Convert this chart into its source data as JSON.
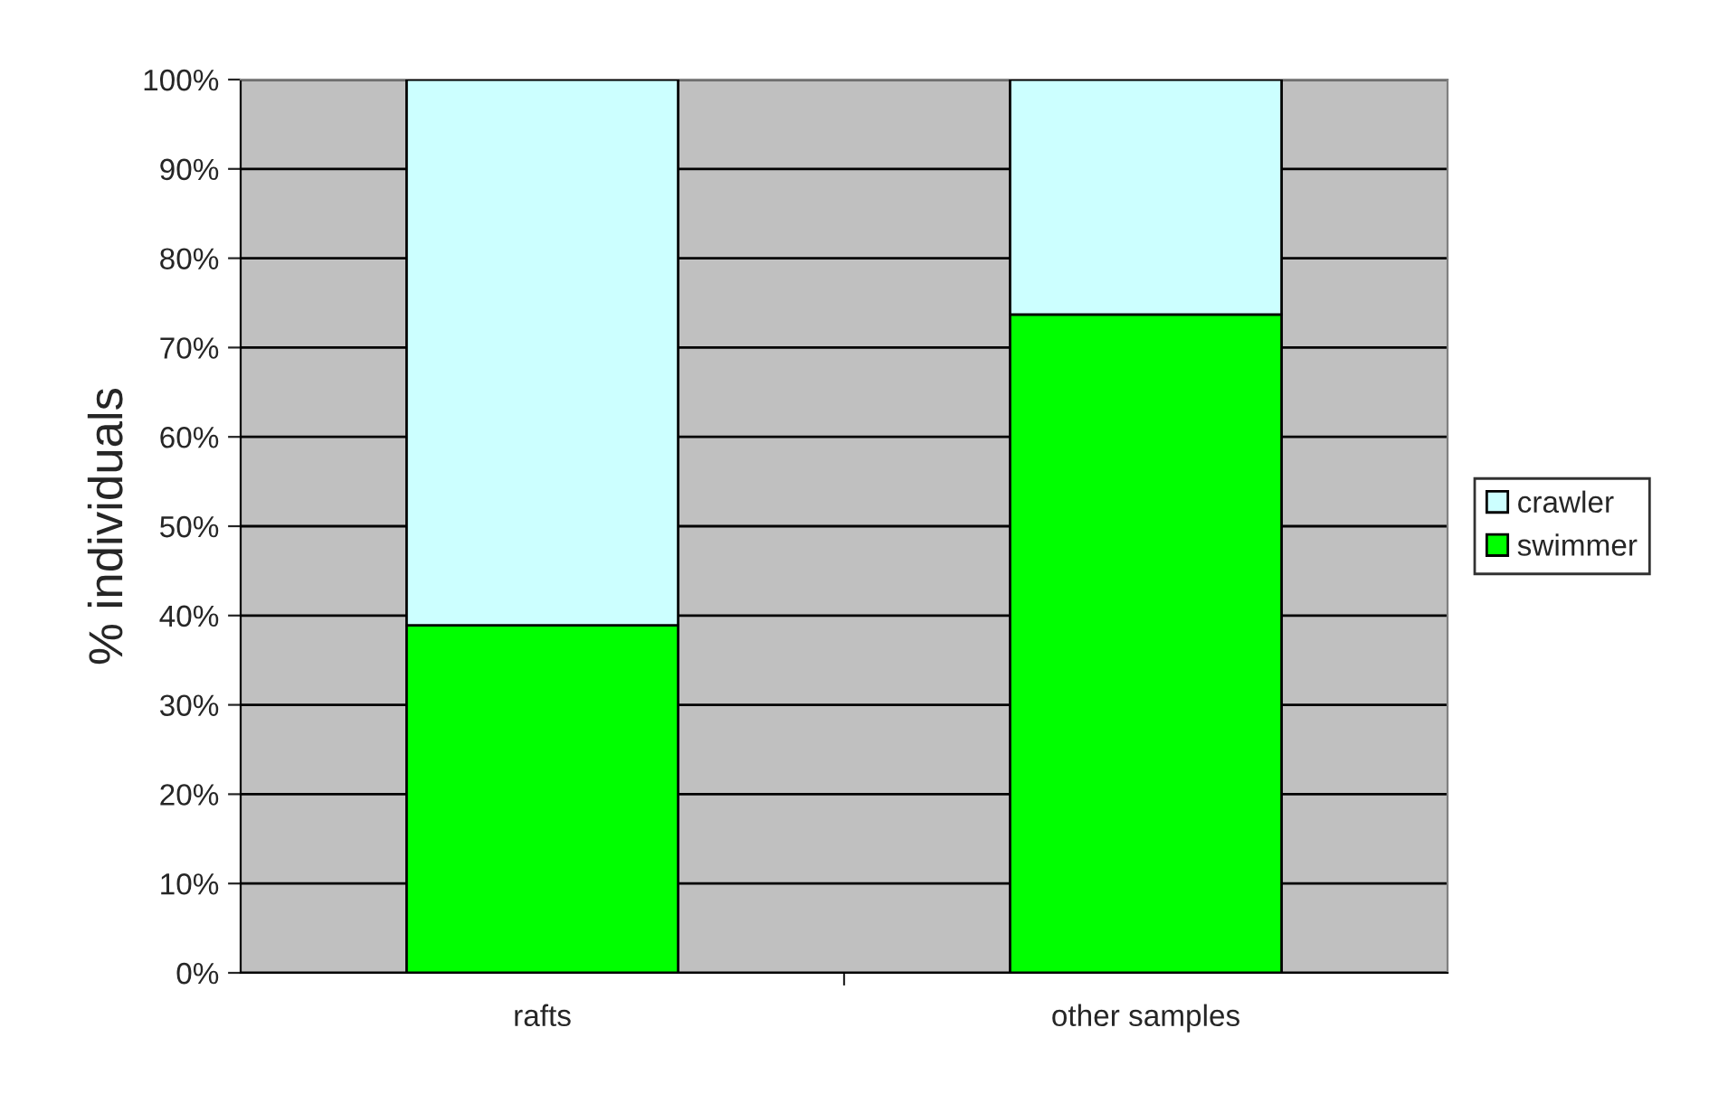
{
  "chart_data": {
    "type": "bar",
    "stacked": true,
    "ylabel": "% individuals",
    "categories": [
      "rafts",
      "other samples"
    ],
    "series": [
      {
        "name": "swimmer",
        "color": "#00ff00",
        "values": [
          38.9,
          73.7
        ]
      },
      {
        "name": "crawler",
        "color": "#ccffff",
        "values": [
          61.1,
          26.3
        ]
      }
    ],
    "ylim": [
      0,
      100
    ],
    "yticks": [
      {
        "value": 0,
        "label": "0%"
      },
      {
        "value": 10,
        "label": "10%"
      },
      {
        "value": 20,
        "label": "20%"
      },
      {
        "value": 30,
        "label": "30%"
      },
      {
        "value": 40,
        "label": "40%"
      },
      {
        "value": 50,
        "label": "50%"
      },
      {
        "value": 60,
        "label": "60%"
      },
      {
        "value": 70,
        "label": "70%"
      },
      {
        "value": 80,
        "label": "80%"
      },
      {
        "value": 90,
        "label": "90%"
      },
      {
        "value": 100,
        "label": "100%"
      }
    ],
    "grid": "y",
    "legend": "right"
  }
}
